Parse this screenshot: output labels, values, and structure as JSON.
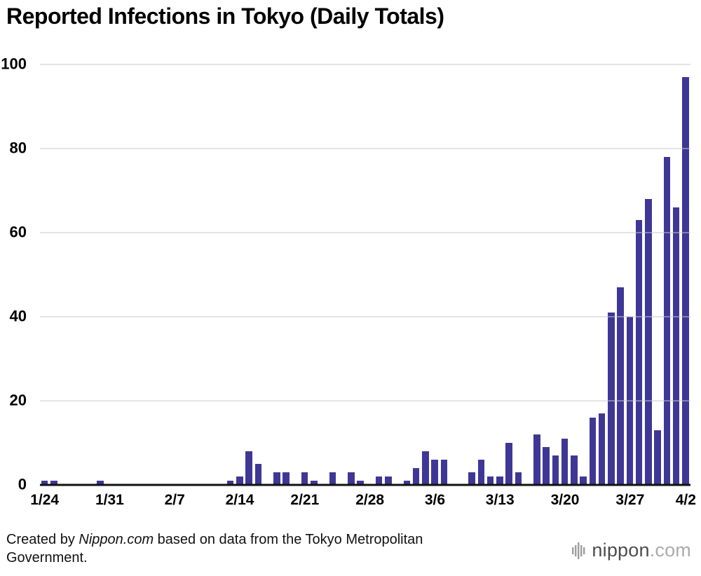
{
  "title": "Reported Infections in Tokyo (Daily Totals)",
  "footer": {
    "credit_prefix": "Created by ",
    "credit_source": "Nippon.com",
    "credit_suffix": " based on data from the Tokyo Metropolitan Government.",
    "logo_main": "nippon",
    "logo_suffix": ".com"
  },
  "icons": {
    "logo": "vertical-bars-icon"
  },
  "colors": {
    "bar": "#3f3795",
    "grid": "#c9c9c9",
    "axis": "#111111",
    "text": "#000000",
    "logo_main": "#4c4c4c",
    "logo_suffix": "#ababab",
    "logo_icon": "#9e9e9e"
  },
  "chart_data": {
    "type": "bar",
    "title": "Reported Infections in Tokyo (Daily Totals)",
    "xlabel": "",
    "ylabel": "",
    "ylim": [
      0,
      100
    ],
    "yticks": [
      0,
      20,
      40,
      60,
      80,
      100
    ],
    "grid": true,
    "legend": "none",
    "x": [
      "1/24",
      "1/25",
      "1/26",
      "1/27",
      "1/28",
      "1/29",
      "1/30",
      "1/31",
      "2/1",
      "2/2",
      "2/3",
      "2/4",
      "2/5",
      "2/6",
      "2/7",
      "2/8",
      "2/9",
      "2/10",
      "2/11",
      "2/12",
      "2/13",
      "2/14",
      "2/15",
      "2/16",
      "2/17",
      "2/18",
      "2/19",
      "2/20",
      "2/21",
      "2/22",
      "2/23",
      "2/24",
      "2/25",
      "2/26",
      "2/27",
      "2/28",
      "2/29",
      "3/1",
      "3/2",
      "3/3",
      "3/4",
      "3/5",
      "3/6",
      "3/7",
      "3/8",
      "3/9",
      "3/10",
      "3/11",
      "3/12",
      "3/13",
      "3/14",
      "3/15",
      "3/16",
      "3/17",
      "3/18",
      "3/19",
      "3/20",
      "3/21",
      "3/22",
      "3/23",
      "3/24",
      "3/25",
      "3/26",
      "3/27",
      "3/28",
      "3/29",
      "3/30",
      "3/31",
      "4/1",
      "4/2"
    ],
    "values": [
      1,
      1,
      0,
      0,
      0,
      0,
      1,
      0,
      0,
      0,
      0,
      0,
      0,
      0,
      0,
      0,
      0,
      0,
      0,
      0,
      1,
      2,
      8,
      5,
      0,
      3,
      3,
      0,
      3,
      1,
      0,
      3,
      0,
      3,
      1,
      0,
      2,
      2,
      0,
      1,
      4,
      8,
      6,
      6,
      0,
      0,
      3,
      6,
      2,
      2,
      10,
      3,
      0,
      12,
      9,
      7,
      11,
      7,
      2,
      16,
      17,
      41,
      47,
      40,
      63,
      68,
      13,
      78,
      66,
      97
    ],
    "tick_labels": [
      "1/24",
      "1/31",
      "2/7",
      "2/14",
      "2/21",
      "2/28",
      "3/6",
      "3/13",
      "3/20",
      "3/27",
      "4/2"
    ],
    "tick_indices": [
      0,
      7,
      14,
      21,
      28,
      35,
      42,
      49,
      56,
      63,
      69
    ]
  }
}
